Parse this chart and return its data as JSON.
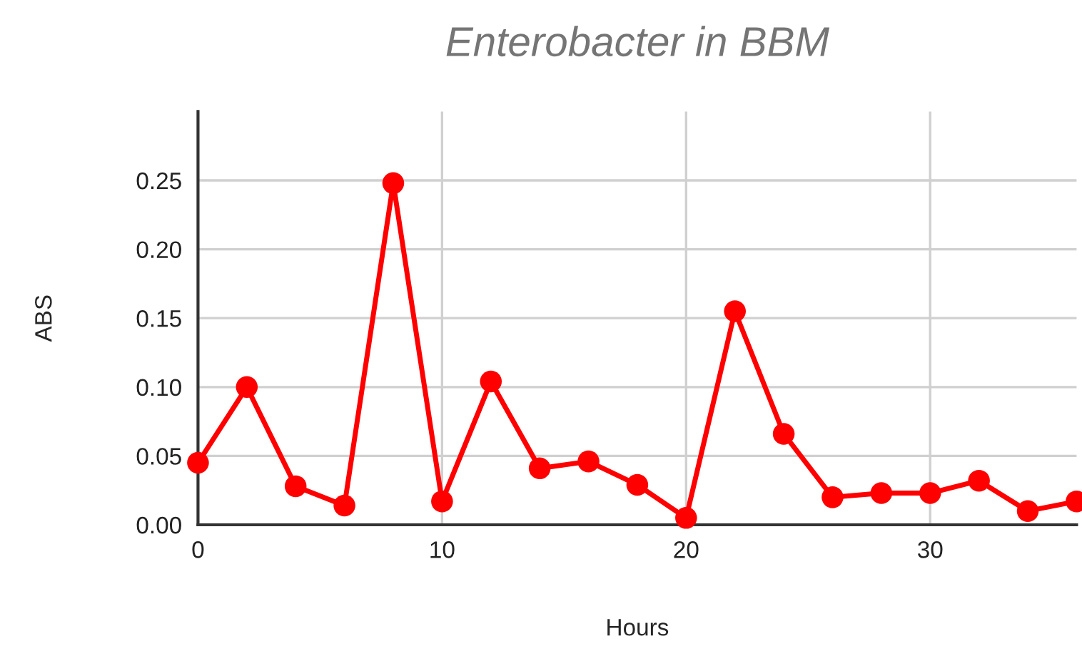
{
  "chart_data": {
    "type": "line",
    "title": "Enterobacter in BBM",
    "xlabel": "Hours",
    "ylabel": "ABS",
    "x": [
      0,
      2,
      4,
      6,
      8,
      10,
      12,
      14,
      16,
      18,
      20,
      22,
      24,
      26,
      28,
      30,
      32,
      34,
      36
    ],
    "series": [
      {
        "color": "#ff0000",
        "values": [
          0.045,
          0.1,
          0.028,
          0.014,
          0.248,
          0.017,
          0.104,
          0.041,
          0.046,
          0.029,
          0.005,
          0.155,
          0.066,
          0.02,
          0.023,
          0.023,
          0.032,
          0.01,
          0.017
        ]
      }
    ],
    "xlim": [
      0,
      36
    ],
    "xticks": [
      0,
      10,
      20,
      30
    ],
    "ylim": [
      0,
      0.3
    ],
    "yticks": [
      {
        "value": 0,
        "label": "0.00"
      },
      {
        "value": 0.05,
        "label": "0.05"
      },
      {
        "value": 0.1,
        "label": "0.10"
      },
      {
        "value": 0.15,
        "label": "0.15"
      },
      {
        "value": 0.2,
        "label": "0.20"
      },
      {
        "value": 0.25,
        "label": "0.25"
      }
    ],
    "grid": true,
    "marker": "circle",
    "line_style": "solid"
  }
}
